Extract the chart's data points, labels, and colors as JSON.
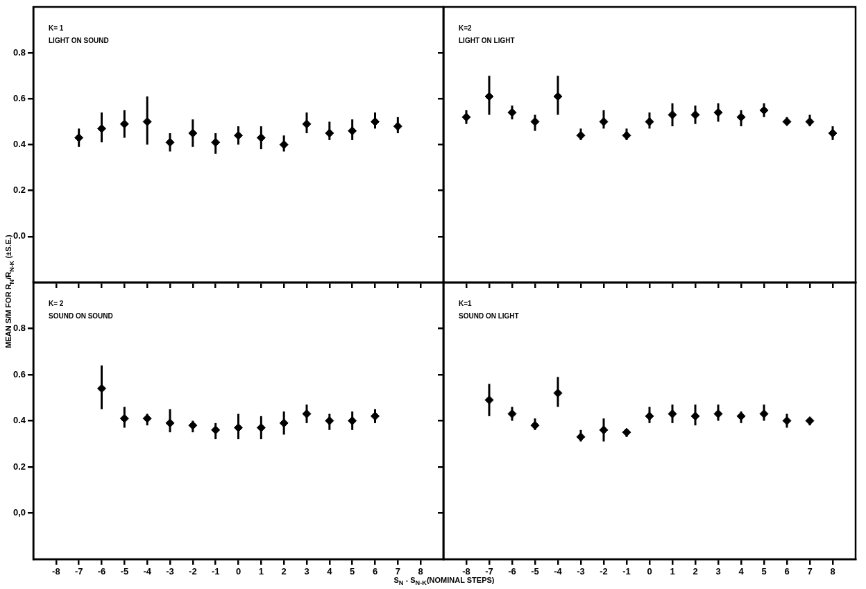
{
  "chart_data": [
    {
      "type": "scatter",
      "title": "K= 1",
      "subtitle": "LIGHT ON SOUND",
      "ylabel": "MEAN S/M FOR R$_{N}$/R$_{N-K}$ (±S.E.)",
      "x": [
        -7,
        -6,
        -5,
        -4,
        -3,
        -2,
        -1,
        0,
        1,
        2,
        3,
        4,
        5,
        6,
        7
      ],
      "marker": "diamond",
      "tick_labels": "y",
      "series": [
        {
          "color": "#000000",
          "values": [
            0.43,
            0.47,
            0.49,
            0.5,
            0.41,
            0.45,
            0.41,
            0.44,
            0.43,
            0.4,
            0.49,
            0.45,
            0.46,
            0.5,
            0.48
          ],
          "errors": [
            [
              0.39,
              0.47
            ],
            [
              0.41,
              0.54
            ],
            [
              0.43,
              0.55
            ],
            [
              0.4,
              0.61
            ],
            [
              0.37,
              0.45
            ],
            [
              0.39,
              0.51
            ],
            [
              0.36,
              0.45
            ],
            [
              0.4,
              0.48
            ],
            [
              0.38,
              0.48
            ],
            [
              0.37,
              0.44
            ],
            [
              0.45,
              0.54
            ],
            [
              0.42,
              0.5
            ],
            [
              0.42,
              0.51
            ],
            [
              0.47,
              0.54
            ],
            [
              0.45,
              0.52
            ]
          ]
        }
      ],
      "xlim": [
        -9,
        9
      ],
      "xticks": [
        -8,
        -7,
        -6,
        -5,
        -4,
        -3,
        -2,
        -1,
        0,
        1,
        2,
        3,
        4,
        5,
        6,
        7,
        8
      ],
      "ylim": [
        -0.2,
        1.0
      ],
      "yticks": [
        {
          "value": 0,
          "label": "0.0"
        },
        0.2,
        0.4,
        0.6,
        0.8
      ]
    },
    {
      "type": "scatter",
      "title": "K=2",
      "subtitle": "LIGHT ON LIGHT",
      "x": [
        -8,
        -7,
        -6,
        -5,
        -4,
        -3,
        -2,
        -1,
        0,
        1,
        2,
        3,
        4,
        5,
        6,
        7,
        8
      ],
      "marker": "diamond",
      "tick_labels": false,
      "series": [
        {
          "color": "#000000",
          "values": [
            0.52,
            0.61,
            0.54,
            0.5,
            0.61,
            0.44,
            0.5,
            0.44,
            0.5,
            0.53,
            0.53,
            0.54,
            0.52,
            0.55,
            0.5,
            0.5,
            0.45
          ],
          "errors": [
            [
              0.49,
              0.55
            ],
            [
              0.53,
              0.7
            ],
            [
              0.51,
              0.57
            ],
            [
              0.46,
              0.53
            ],
            [
              0.53,
              0.7
            ],
            [
              0.42,
              0.47
            ],
            [
              0.47,
              0.55
            ],
            [
              0.42,
              0.47
            ],
            [
              0.47,
              0.54
            ],
            [
              0.48,
              0.58
            ],
            [
              0.49,
              0.57
            ],
            [
              0.5,
              0.58
            ],
            [
              0.48,
              0.55
            ],
            [
              0.52,
              0.58
            ],
            [
              0.49,
              0.52
            ],
            [
              0.48,
              0.53
            ],
            [
              0.42,
              0.48
            ]
          ]
        }
      ],
      "xlim": [
        -9,
        9
      ],
      "xticks": [
        -8,
        -7,
        -6,
        -5,
        -4,
        -3,
        -2,
        -1,
        0,
        1,
        2,
        3,
        4,
        5,
        6,
        7,
        8
      ],
      "ylim": [
        -0.2,
        1.0
      ],
      "yticks": [
        0,
        0.2,
        0.4,
        0.6,
        0.8
      ]
    },
    {
      "type": "scatter",
      "title": "K= 2",
      "subtitle": "SOUND ON SOUND",
      "xlabel": "S$_{N}$ - S$_{N-K}$(NOMINAL STEPS)",
      "x": [
        -6,
        -5,
        -4,
        -3,
        -2,
        -1,
        0,
        1,
        2,
        3,
        4,
        5,
        6
      ],
      "marker": "diamond",
      "series": [
        {
          "color": "#000000",
          "values": [
            0.54,
            0.41,
            0.41,
            0.39,
            0.38,
            0.36,
            0.37,
            0.37,
            0.39,
            0.43,
            0.4,
            0.4,
            0.42
          ],
          "errors": [
            [
              0.45,
              0.64
            ],
            [
              0.37,
              0.46
            ],
            [
              0.38,
              0.43
            ],
            [
              0.35,
              0.45
            ],
            [
              0.35,
              0.4
            ],
            [
              0.32,
              0.39
            ],
            [
              0.32,
              0.43
            ],
            [
              0.32,
              0.42
            ],
            [
              0.34,
              0.44
            ],
            [
              0.39,
              0.47
            ],
            [
              0.36,
              0.43
            ],
            [
              0.36,
              0.44
            ],
            [
              0.39,
              0.45
            ]
          ]
        }
      ],
      "xlim": [
        -9,
        9
      ],
      "xticks": [
        -8,
        -7,
        -6,
        -5,
        -4,
        -3,
        -2,
        -1,
        0,
        1,
        2,
        3,
        4,
        5,
        6,
        7,
        8
      ],
      "ylim": [
        -0.2,
        1.0
      ],
      "yticks": [
        {
          "value": 0,
          "label": "0,0"
        },
        0.2,
        0.4,
        0.6,
        0.8
      ]
    },
    {
      "type": "scatter",
      "title": "K=1",
      "subtitle": "SOUND ON LIGHT",
      "x": [
        -7,
        -6,
        -5,
        -4,
        -3,
        -2,
        -1,
        0,
        1,
        2,
        3,
        4,
        5,
        6,
        7
      ],
      "marker": "diamond",
      "tick_labels": "x",
      "series": [
        {
          "color": "#000000",
          "values": [
            0.49,
            0.43,
            0.38,
            0.52,
            0.33,
            0.36,
            0.35,
            0.42,
            0.43,
            0.42,
            0.43,
            0.42,
            0.43,
            0.4,
            0.4
          ],
          "errors": [
            [
              0.42,
              0.56
            ],
            [
              0.4,
              0.46
            ],
            [
              0.36,
              0.41
            ],
            [
              0.46,
              0.59
            ],
            [
              0.31,
              0.36
            ],
            [
              0.31,
              0.41
            ],
            [
              0.33,
              0.36
            ],
            [
              0.39,
              0.46
            ],
            [
              0.39,
              0.47
            ],
            [
              0.38,
              0.47
            ],
            [
              0.4,
              0.47
            ],
            [
              0.39,
              0.44
            ],
            [
              0.4,
              0.47
            ],
            [
              0.37,
              0.43
            ],
            [
              0.38,
              0.41
            ]
          ]
        }
      ],
      "xlim": [
        -9,
        9
      ],
      "xticks": [
        -8,
        -7,
        -6,
        -5,
        -4,
        -3,
        -2,
        -1,
        0,
        1,
        2,
        3,
        4,
        5,
        6,
        7,
        8
      ],
      "ylim": [
        -0.2,
        1.0
      ],
      "yticks": [
        0,
        0.2,
        0.4,
        0.6,
        0.8
      ]
    }
  ]
}
